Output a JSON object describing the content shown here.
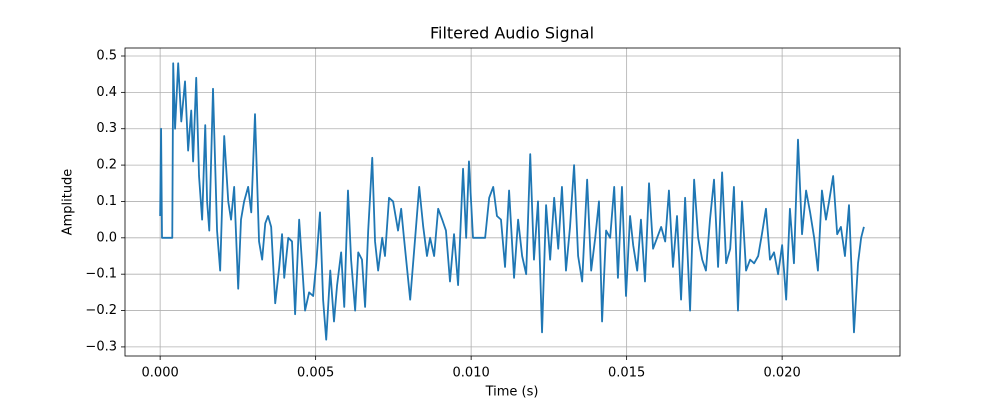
{
  "chart_data": {
    "type": "line",
    "title": "Filtered Audio Signal",
    "xlabel": "Time (s)",
    "ylabel": "Amplitude",
    "grid": true,
    "xlim": [
      -0.00113,
      0.02379
    ],
    "ylim": [
      -0.325,
      0.522
    ],
    "xticks": [
      {
        "value": 0,
        "label": "0.000"
      },
      {
        "value": 0.005,
        "label": "0.005"
      },
      {
        "value": 0.01,
        "label": "0.010"
      },
      {
        "value": 0.015,
        "label": "0.015"
      },
      {
        "value": 0.02,
        "label": "0.020"
      }
    ],
    "yticks": [
      {
        "value": -0.3,
        "label": "−0.3"
      },
      {
        "value": -0.2,
        "label": "−0.2"
      },
      {
        "value": -0.1,
        "label": "−0.1"
      },
      {
        "value": 0,
        "label": "0.0"
      },
      0.1,
      0.2,
      0.3,
      0.4,
      0.5
    ],
    "x": [
      0,
      3e-05,
      6e-05,
      0.00039,
      0.00042,
      0.00048,
      0.00058,
      0.00068,
      0.0008,
      0.0009,
      0.001,
      0.00106,
      0.00116,
      0.00125,
      0.00135,
      0.00145,
      0.00151,
      0.00158,
      0.0017,
      0.00183,
      0.00193,
      0.00206,
      0.00219,
      0.00228,
      0.00238,
      0.00251,
      0.0026,
      0.0027,
      0.00283,
      0.00293,
      0.00305,
      0.00318,
      0.00328,
      0.00338,
      0.00347,
      0.00357,
      0.0037,
      0.00383,
      0.00392,
      0.00399,
      0.00412,
      0.00424,
      0.00434,
      0.00447,
      0.00457,
      0.00466,
      0.00479,
      0.00492,
      0.00502,
      0.00514,
      0.00524,
      0.00534,
      0.00547,
      0.00559,
      0.00569,
      0.00582,
      0.00592,
      0.00604,
      0.00614,
      0.00627,
      0.00637,
      0.00649,
      0.00659,
      0.00669,
      0.00682,
      0.00691,
      0.00701,
      0.00714,
      0.00723,
      0.00736,
      0.00749,
      0.00765,
      0.00775,
      0.00784,
      0.00804,
      0.0082,
      0.00833,
      0.00846,
      0.00858,
      0.00868,
      0.00881,
      0.00894,
      0.00907,
      0.00919,
      0.00932,
      0.00945,
      0.00958,
      0.00974,
      0.00984,
      0.00993,
      0.01006,
      0.01045,
      0.01058,
      0.01071,
      0.01083,
      0.01096,
      0.01109,
      0.01122,
      0.01138,
      0.01151,
      0.01164,
      0.01177,
      0.0119,
      0.01202,
      0.01215,
      0.01228,
      0.01241,
      0.01254,
      0.01267,
      0.0128,
      0.01292,
      0.01305,
      0.01318,
      0.01331,
      0.01344,
      0.01357,
      0.01373,
      0.01386,
      0.01399,
      0.01411,
      0.01421,
      0.01434,
      0.01447,
      0.0146,
      0.01472,
      0.01485,
      0.01498,
      0.01511,
      0.01521,
      0.01534,
      0.01546,
      0.01559,
      0.01572,
      0.01585,
      0.01598,
      0.01611,
      0.01624,
      0.01636,
      0.01649,
      0.01662,
      0.01675,
      0.01688,
      0.01704,
      0.01717,
      0.0173,
      0.01743,
      0.01755,
      0.01768,
      0.01781,
      0.01794,
      0.01807,
      0.0182,
      0.01833,
      0.01845,
      0.01858,
      0.01871,
      0.01884,
      0.01897,
      0.0191,
      0.01923,
      0.01935,
      0.01948,
      0.01961,
      0.01974,
      0.01987,
      0.02,
      0.02013,
      0.02025,
      0.02038,
      0.02051,
      0.02064,
      0.02077,
      0.0209,
      0.02103,
      0.02115,
      0.02128,
      0.02141,
      0.02151,
      0.02164,
      0.02177,
      0.02189,
      0.02202,
      0.02215,
      0.02231,
      0.02244,
      0.02254,
      0.02263
    ],
    "series": [
      {
        "color": "#1f77b4",
        "values": [
          0.06,
          0.3,
          0,
          0,
          0.48,
          0.3,
          0.48,
          0.32,
          0.43,
          0.24,
          0.35,
          0.21,
          0.44,
          0.17,
          0.05,
          0.31,
          0.1,
          0.02,
          0.41,
          0.02,
          -0.09,
          0.28,
          0.1,
          0.05,
          0.14,
          -0.14,
          0.05,
          0.1,
          0.14,
          0.07,
          0.34,
          -0.01,
          -0.06,
          0.04,
          0.06,
          0.03,
          -0.18,
          -0.08,
          0.01,
          -0.11,
          0,
          -0.01,
          -0.21,
          0.05,
          -0.08,
          -0.2,
          -0.15,
          -0.16,
          -0.07,
          0.07,
          -0.17,
          -0.28,
          -0.09,
          -0.23,
          -0.13,
          -0.04,
          -0.19,
          0.13,
          -0.06,
          -0.2,
          -0.04,
          -0.06,
          -0.19,
          0.02,
          0.22,
          -0.01,
          -0.09,
          0,
          -0.05,
          0.11,
          0.1,
          0.02,
          0.08,
          0,
          -0.17,
          0,
          0.14,
          0.03,
          -0.05,
          0,
          -0.05,
          0.08,
          0.05,
          0.02,
          -0.12,
          0.01,
          -0.13,
          0.19,
          0,
          0.21,
          0,
          0,
          0.11,
          0.14,
          0.06,
          0.05,
          -0.08,
          0.13,
          -0.11,
          0.05,
          -0.05,
          -0.1,
          0.23,
          -0.06,
          0.1,
          -0.26,
          0.09,
          -0.06,
          0.11,
          -0.03,
          0.14,
          -0.09,
          0.03,
          0.2,
          -0.05,
          -0.12,
          0.16,
          -0.09,
          0,
          0.1,
          -0.23,
          0.02,
          0,
          0.14,
          -0.11,
          0.14,
          -0.16,
          0.06,
          -0.02,
          -0.09,
          0.05,
          -0.12,
          0.15,
          -0.03,
          0,
          0.03,
          -0.01,
          0.13,
          -0.08,
          0.06,
          -0.17,
          0.11,
          -0.2,
          0.16,
          0,
          -0.06,
          -0.09,
          0.05,
          0.16,
          -0.08,
          0.18,
          -0.07,
          -0.03,
          0.14,
          -0.2,
          0.1,
          -0.09,
          -0.06,
          -0.07,
          -0.05,
          0.01,
          0.08,
          -0.06,
          -0.04,
          -0.1,
          -0.02,
          -0.17,
          0.08,
          -0.07,
          0.27,
          0.01,
          0.13,
          0.07,
          0,
          -0.09,
          0.13,
          0.05,
          0.1,
          0.17,
          0.01,
          0.03,
          -0.05,
          0.09,
          -0.26,
          -0.07,
          0,
          0.03
        ]
      }
    ]
  }
}
